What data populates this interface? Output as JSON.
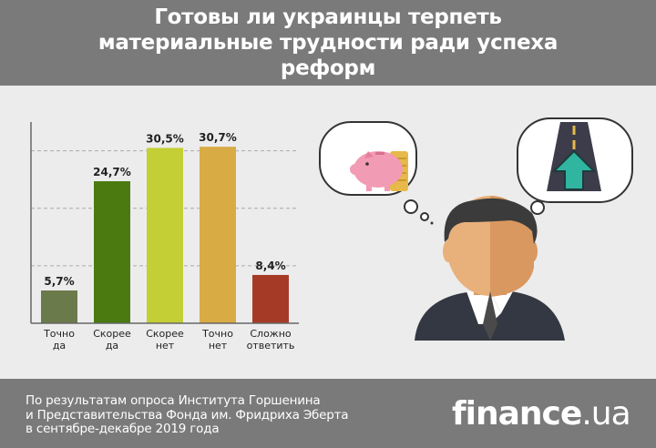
{
  "header": {
    "title": "Готовы ли украинцы терпеть материальные трудности ради успеха реформ"
  },
  "footer": {
    "note_line1": "По результатам опроса Института Горшенина",
    "note_line2": "и Представительства Фонда им. Фридриха Эберта",
    "note_line3": "в сентябре-декабре 2019 года",
    "logo_main": "finance",
    "logo_suffix": ".ua"
  },
  "chart_data": {
    "type": "bar",
    "categories": [
      [
        "Точно",
        "да"
      ],
      [
        "Скорее",
        "да"
      ],
      [
        "Скорее",
        "нет"
      ],
      [
        "Точно",
        "нет"
      ],
      [
        "Сложно",
        "ответить"
      ]
    ],
    "values": [
      5.7,
      24.7,
      30.5,
      30.7,
      8.4
    ],
    "labels": [
      "5,7%",
      "24,7%",
      "30,5%",
      "30,7%",
      "8,4%"
    ],
    "colors": [
      "#6b7a4a",
      "#4a7a10",
      "#c4cf35",
      "#d8ab45",
      "#a53b26"
    ],
    "ylim": [
      0,
      35
    ],
    "grid": true
  },
  "colors": {
    "header_bg": "#7a7a7a",
    "body_bg": "#ececec",
    "axis": "#666666",
    "grid": "#aaaaaa"
  }
}
